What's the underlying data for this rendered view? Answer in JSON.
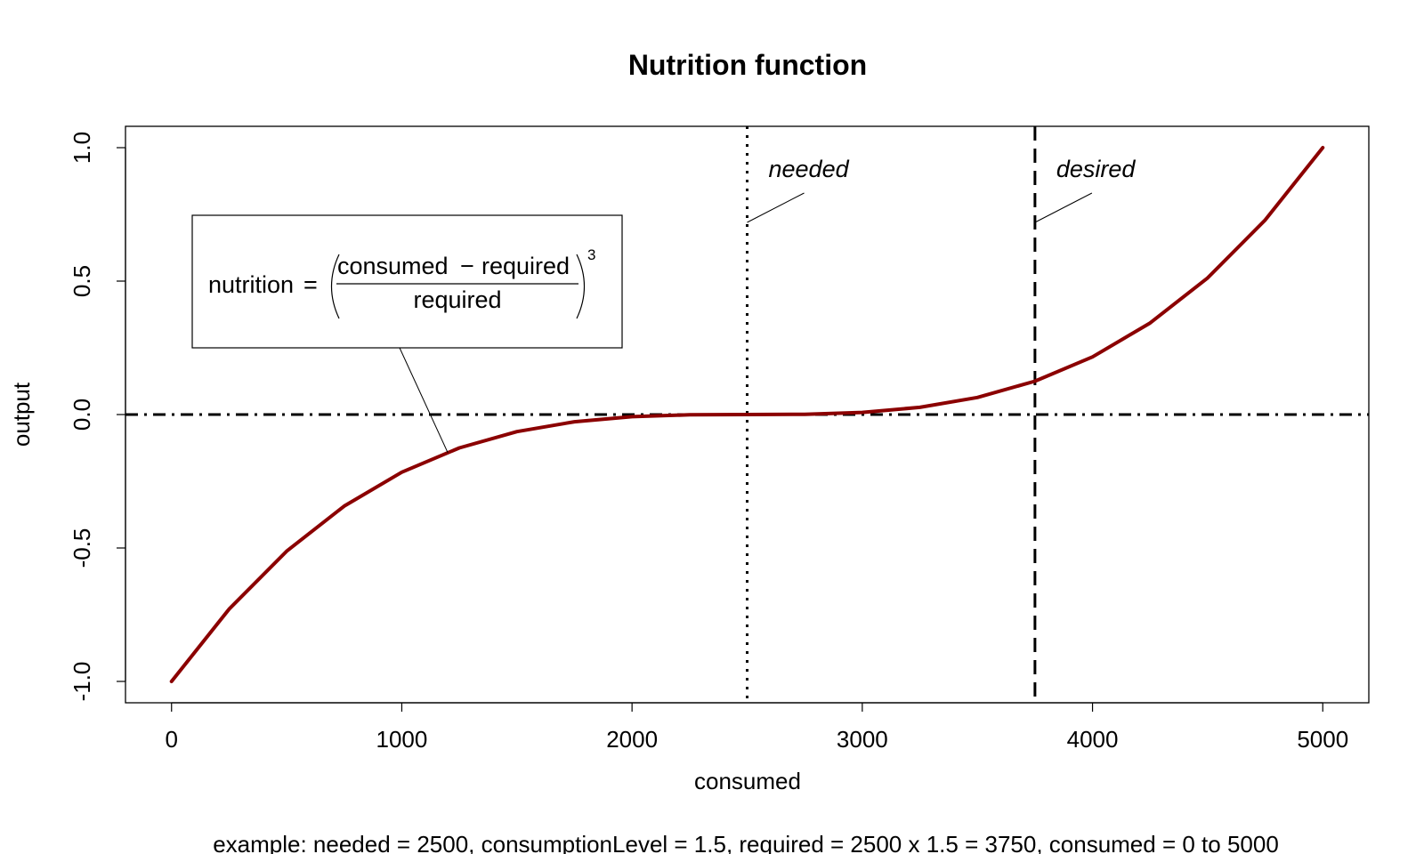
{
  "chart_data": {
    "type": "line",
    "title": "Nutrition function",
    "xlabel": "consumed",
    "ylabel": "output",
    "xlim": [
      -200,
      5200
    ],
    "ylim": [
      -1.08,
      1.08
    ],
    "x_ticks": [
      0,
      1000,
      2000,
      3000,
      4000,
      5000
    ],
    "x_tick_labels": [
      "0",
      "1000",
      "2000",
      "3000",
      "4000",
      "5000"
    ],
    "y_ticks": [
      -1.0,
      -0.5,
      0.0,
      0.5,
      1.0
    ],
    "y_tick_labels": [
      "-1.0",
      "-0.5",
      "0.0",
      "0.5",
      "1.0"
    ],
    "grid": false,
    "series": [
      {
        "color": "#8b0000",
        "x": [
          0,
          250,
          500,
          750,
          1000,
          1250,
          1500,
          1750,
          2000,
          2250,
          2500,
          2750,
          3000,
          3250,
          3500,
          3750,
          4000,
          4250,
          4500,
          4750,
          5000
        ],
        "values": [
          -1.0,
          -0.729,
          -0.512,
          -0.343,
          -0.216,
          -0.125,
          -0.064,
          -0.027,
          -0.008,
          -0.001,
          0.0,
          0.001,
          0.008,
          0.027,
          0.064,
          0.125,
          0.216,
          0.343,
          0.512,
          0.729,
          1.0
        ]
      }
    ],
    "reference_lines": [
      {
        "orientation": "vertical",
        "value": 2500,
        "style": "dotted",
        "label": "needed"
      },
      {
        "orientation": "vertical",
        "value": 3750,
        "style": "dashed",
        "label": "desired"
      },
      {
        "orientation": "horizontal",
        "value": 0,
        "style": "dashdot"
      }
    ],
    "formula": {
      "lhs": "nutrition",
      "equals": "=",
      "numerator_left": "consumed",
      "minus": "−",
      "numerator_right": "required",
      "denominator": "required",
      "exponent": "3",
      "pointer_x": 1200
    },
    "footnote": "example: needed = 2500, consumptionLevel = 1.5, required = 2500 x 1.5 = 3750, consumed = 0 to 5000"
  }
}
